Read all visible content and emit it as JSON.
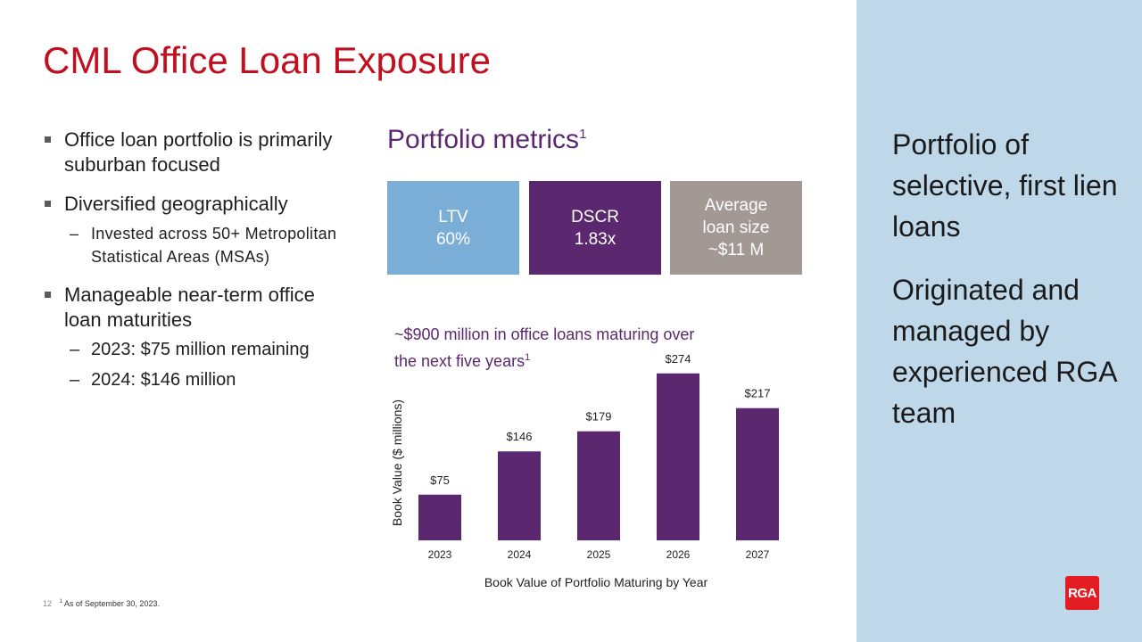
{
  "title": "CML Office Loan Exposure",
  "bullets": {
    "b1": "Office loan portfolio is primarily suburban focused",
    "b2": "Diversified geographically",
    "b2_sub": "Invested across 50+ Metropolitan Statistical Areas (MSAs)",
    "b3": "Manageable near-term office loan maturities",
    "b3_sub1": "2023: $75 million remaining",
    "b3_sub2": "2024: $146 million"
  },
  "metrics": {
    "heading": "Portfolio metrics",
    "heading_note": "1",
    "ltv_label": "LTV",
    "ltv_value": "60%",
    "dscr_label": "DSCR",
    "dscr_value": "1.83x",
    "avg_label": "Average loan size",
    "avg_value": "~$11 M"
  },
  "maturing_text": "~$900 million in office loans maturing over the next five years",
  "maturing_note": "1",
  "side": {
    "p1": "Portfolio of selective, first lien loans",
    "p2": "Originated and managed by experienced RGA team"
  },
  "footer": {
    "page": "12",
    "note_mark": "1",
    "note": "As of September 30, 2023."
  },
  "logo_text": "RGA",
  "colors": {
    "title_red": "#c00f1e",
    "purple": "#5b2870",
    "ltv_blue": "#7aaed6",
    "avg_gray": "#a29995",
    "panel_blue": "#bed8ea"
  },
  "chart_data": {
    "type": "bar",
    "categories": [
      "2023",
      "2024",
      "2025",
      "2026",
      "2027"
    ],
    "values": [
      75,
      146,
      179,
      274,
      217
    ],
    "data_labels": [
      "$75",
      "$146",
      "$179",
      "$274",
      "$217"
    ],
    "xlabel": "Book Value of Portfolio Maturing by Year",
    "ylabel": "Book Value ($ millions)",
    "ylim": [
      0,
      300
    ],
    "grid": false,
    "legend": "none",
    "bar_color": "#5b2870"
  }
}
